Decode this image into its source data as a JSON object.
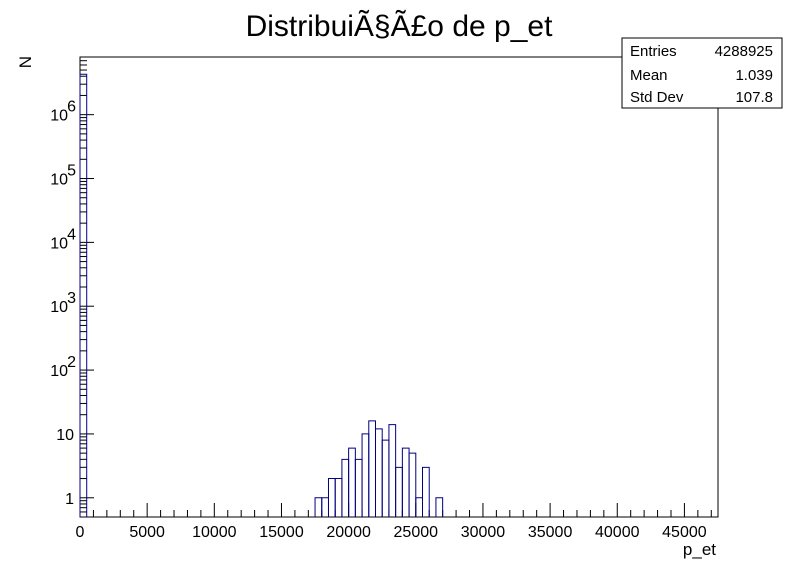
{
  "chart_data": {
    "type": "histogram",
    "title": "DistribuiÃ§Ã£o de p_et",
    "xlabel": "p_et",
    "ylabel": "N",
    "xlim": [
      0,
      47500
    ],
    "ylim": [
      0.5,
      8000000
    ],
    "yscale": "log",
    "bin_width": 500,
    "line_color": "#000080",
    "x_ticks": [
      "0",
      "5000",
      "10000",
      "15000",
      "20000",
      "25000",
      "30000",
      "35000",
      "40000",
      "45000"
    ],
    "x_tick_values": [
      0,
      5000,
      10000,
      15000,
      20000,
      25000,
      30000,
      35000,
      40000,
      45000
    ],
    "y_ticks": [
      {
        "value": 1,
        "base": "1",
        "exp": ""
      },
      {
        "value": 10,
        "base": "10",
        "exp": ""
      },
      {
        "value": 100,
        "base": "10",
        "exp": "2"
      },
      {
        "value": 1000,
        "base": "10",
        "exp": "3"
      },
      {
        "value": 10000,
        "base": "10",
        "exp": "4"
      },
      {
        "value": 100000,
        "base": "10",
        "exp": "5"
      },
      {
        "value": 1000000,
        "base": "10",
        "exp": "6"
      }
    ],
    "bins": [
      {
        "x": 0,
        "y": 4288800
      },
      {
        "x": 17500,
        "y": 1
      },
      {
        "x": 18000,
        "y": 1
      },
      {
        "x": 18500,
        "y": 2
      },
      {
        "x": 19000,
        "y": 2
      },
      {
        "x": 19500,
        "y": 4
      },
      {
        "x": 20000,
        "y": 6
      },
      {
        "x": 20500,
        "y": 4
      },
      {
        "x": 21000,
        "y": 10
      },
      {
        "x": 21500,
        "y": 16
      },
      {
        "x": 22000,
        "y": 12
      },
      {
        "x": 22500,
        "y": 8
      },
      {
        "x": 23000,
        "y": 14
      },
      {
        "x": 23500,
        "y": 3
      },
      {
        "x": 24000,
        "y": 6
      },
      {
        "x": 24500,
        "y": 5
      },
      {
        "x": 25000,
        "y": 1
      },
      {
        "x": 25500,
        "y": 3
      },
      {
        "x": 26000,
        "y": 0
      },
      {
        "x": 26500,
        "y": 1
      }
    ],
    "stats": {
      "entries_label": "Entries",
      "entries": "4288925",
      "mean_label": "Mean",
      "mean": "1.039",
      "stddev_label": "Std Dev",
      "stddev": "107.8"
    }
  }
}
